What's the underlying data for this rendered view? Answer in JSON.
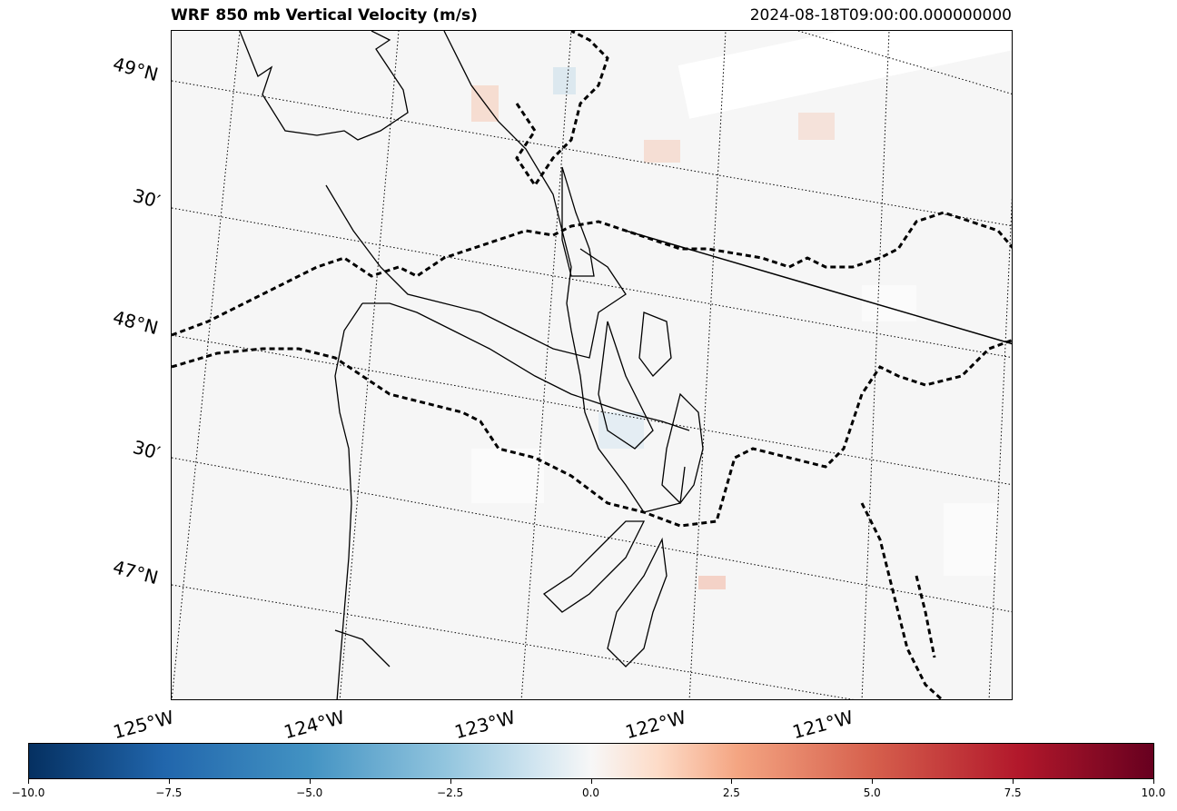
{
  "title": "WRF 850 mb Vertical Velocity (m/s)",
  "timestamp": "2024-08-18T09:00:00.000000000",
  "lat_labels": [
    "49°N",
    "30′",
    "48°N",
    "30′",
    "47°N"
  ],
  "lon_labels": [
    "125°W",
    "124°W",
    "123°W",
    "122°W",
    "121°W"
  ],
  "colorbar": {
    "ticks": [
      "−10.0",
      "−7.5",
      "−5.0",
      "−2.5",
      "0.0",
      "2.5",
      "5.0",
      "7.5",
      "10.0"
    ],
    "colormap": "RdBu_r",
    "min": -10.0,
    "max": 10.0
  },
  "colors": {
    "neg_strong": "#053061",
    "neutral": "#f7f7f7",
    "pos_strong": "#67001f"
  }
}
